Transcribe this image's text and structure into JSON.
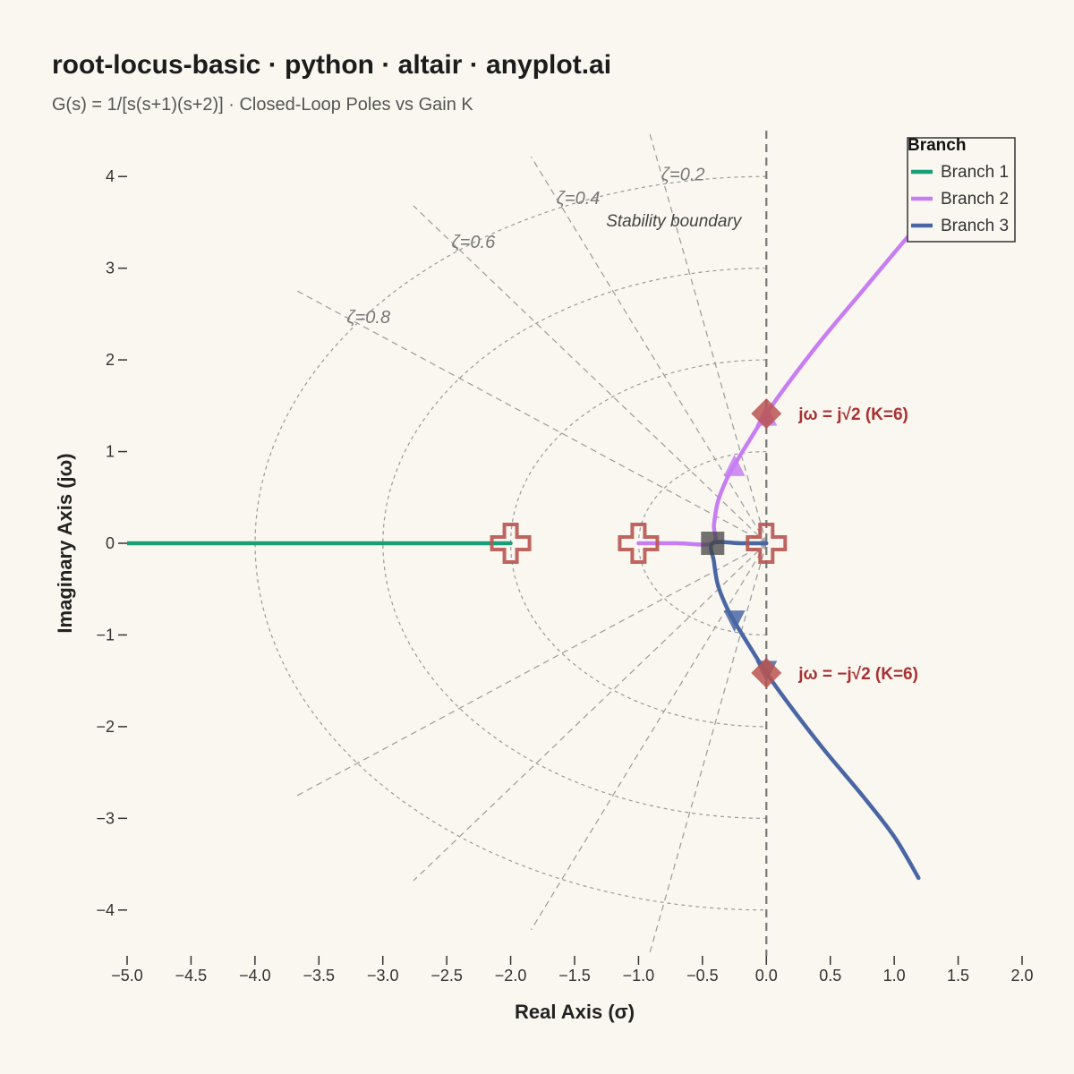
{
  "title": "root-locus-basic · python · altair · anyplot.ai",
  "subtitle": "G(s) = 1/[s(s+1)(s+2)] · Closed-Loop Poles vs Gain K",
  "colors": {
    "background": "#FAF7F1",
    "branch1": "#1A9E77",
    "branch2": "#C77DF3",
    "branch3": "#4A67A3",
    "marker": "#B85450",
    "guide": "#9A9A9A",
    "boundary": "#777777"
  },
  "chart_data": {
    "type": "line",
    "xlabel": "Real Axis (σ)",
    "ylabel": "Imaginary Axis (jω)",
    "xlim": [
      -5.0,
      2.0
    ],
    "ylim": [
      -4.5,
      4.5
    ],
    "x_ticks": [
      -5.0,
      -4.5,
      -4.0,
      -3.5,
      -3.0,
      -2.5,
      -2.0,
      -1.5,
      -1.0,
      -0.5,
      0.0,
      0.5,
      1.0,
      1.5,
      2.0
    ],
    "x_tick_labels": [
      "−5.0",
      "−4.5",
      "−4.0",
      "−3.5",
      "−3.0",
      "−2.5",
      "−2.0",
      "−1.5",
      "−1.0",
      "−0.5",
      "0.0",
      "0.5",
      "1.0",
      "1.5",
      "2.0"
    ],
    "y_ticks": [
      4,
      3,
      2,
      1,
      0,
      -1,
      -2,
      -3,
      -4
    ],
    "y_tick_labels": [
      "4",
      "3",
      "2",
      "1",
      "0",
      "−1",
      "−2",
      "−3",
      "−4"
    ],
    "grid": false,
    "legend": {
      "title": "Branch",
      "position": "top-right",
      "entries": [
        "Branch 1",
        "Branch 2",
        "Branch 3"
      ]
    },
    "series": [
      {
        "name": "Branch 1",
        "color_key": "branch1",
        "points": [
          [
            -2.0,
            0
          ],
          [
            -2.5,
            0
          ],
          [
            -3.0,
            0
          ],
          [
            -3.5,
            0
          ],
          [
            -4.0,
            0
          ],
          [
            -4.5,
            0
          ],
          [
            -5.0,
            0
          ]
        ]
      },
      {
        "name": "Branch 2",
        "color_key": "branch2",
        "points": [
          [
            -1.0,
            0
          ],
          [
            -0.7,
            0
          ],
          [
            -0.42,
            0
          ],
          [
            -0.41,
            0.2
          ],
          [
            -0.38,
            0.45
          ],
          [
            -0.31,
            0.7
          ],
          [
            -0.23,
            0.9
          ],
          [
            -0.12,
            1.15
          ],
          [
            0.0,
            1.414
          ],
          [
            0.2,
            1.8
          ],
          [
            0.45,
            2.25
          ],
          [
            0.75,
            2.75
          ],
          [
            1.05,
            3.25
          ],
          [
            1.38,
            3.78
          ]
        ]
      },
      {
        "name": "Branch 3",
        "color_key": "branch3",
        "points": [
          [
            0.0,
            0
          ],
          [
            -0.2,
            0
          ],
          [
            -0.42,
            0
          ],
          [
            -0.41,
            -0.2
          ],
          [
            -0.38,
            -0.45
          ],
          [
            -0.31,
            -0.7
          ],
          [
            -0.23,
            -0.9
          ],
          [
            -0.12,
            -1.15
          ],
          [
            0.0,
            -1.414
          ],
          [
            0.2,
            -1.8
          ],
          [
            0.45,
            -2.25
          ],
          [
            0.75,
            -2.75
          ],
          [
            1.0,
            -3.2
          ],
          [
            1.19,
            -3.65
          ]
        ]
      }
    ],
    "open_loop_poles": [
      [
        0,
        0
      ],
      [
        -1,
        0
      ],
      [
        -2,
        0
      ]
    ],
    "breakaway_point": [
      -0.42,
      0
    ],
    "direction_markers": [
      {
        "branch": "Branch 2",
        "point": [
          -0.25,
          0.85
        ],
        "shape": "triangle-up"
      },
      {
        "branch": "Branch 3",
        "point": [
          -0.25,
          -0.85
        ],
        "shape": "triangle-down"
      },
      {
        "branch": "Branch 2",
        "point": [
          0.0,
          1.4
        ],
        "shape": "triangle-up"
      },
      {
        "branch": "Branch 3",
        "point": [
          0.0,
          -1.4
        ],
        "shape": "triangle-down"
      }
    ],
    "crossings": [
      {
        "point": [
          0,
          1.414
        ],
        "label": "jω = j√2 (K=6)"
      },
      {
        "point": [
          0,
          -1.414
        ],
        "label": "jω = −j√2 (K=6)"
      }
    ],
    "damping_lines": [
      {
        "zeta": 0.2,
        "label": "ζ=0.2"
      },
      {
        "zeta": 0.4,
        "label": "ζ=0.4"
      },
      {
        "zeta": 0.6,
        "label": "ζ=0.6"
      },
      {
        "zeta": 0.8,
        "label": "ζ=0.8"
      }
    ],
    "natural_frequency_circles": [
      1,
      2,
      3,
      4
    ],
    "stability_boundary": {
      "x": 0,
      "label": "Stability boundary"
    }
  }
}
